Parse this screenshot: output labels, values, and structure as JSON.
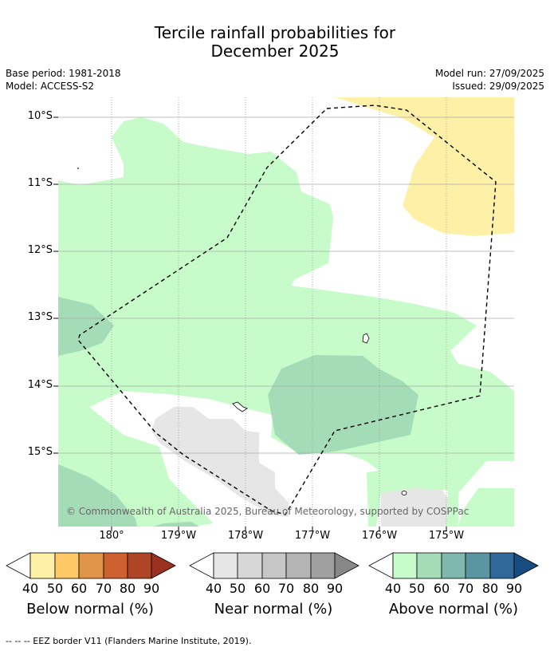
{
  "title_line1": "Tercile rainfall probabilities for",
  "title_line2": "December 2025",
  "base_period": "Base period: 1981-2018",
  "model": "Model: ACCESS-S2",
  "model_run": "Model run: 27/09/2025",
  "issued": "Issued: 29/09/2025",
  "lat_labels": [
    "10°S",
    "11°S",
    "12°S",
    "13°S",
    "14°S",
    "15°S"
  ],
  "lon_labels": [
    "180°",
    "179°W",
    "178°W",
    "177°W",
    "176°W",
    "175°W"
  ],
  "copyright": "© Commonwealth of Australia 2025, Bureau of Meteorology, supported by COSPPac",
  "colorbars": [
    {
      "label": "Below normal (%)",
      "ticks": [
        "40",
        "50",
        "60",
        "70",
        "80",
        "90"
      ],
      "colors": [
        "#fff0a8",
        "#fec966",
        "#e09448",
        "#cf6130",
        "#ae4526",
        "#9a3020"
      ]
    },
    {
      "label": "Near normal (%)",
      "ticks": [
        "40",
        "50",
        "60",
        "70",
        "80",
        "90"
      ],
      "colors": [
        "#e6e6e6",
        "#d7d7d7",
        "#c6c6c6",
        "#b4b4b4",
        "#a0a0a0",
        "#888888"
      ]
    },
    {
      "label": "Above normal (%)",
      "ticks": [
        "40",
        "50",
        "60",
        "70",
        "80",
        "90"
      ],
      "colors": [
        "#c7fcca",
        "#a5dcb8",
        "#80b8ae",
        "#5a96a1",
        "#31689a",
        "#164c7e"
      ]
    }
  ],
  "footer": "--  --  -- EEZ border V11 (Flanders Marine Institute, 2019)."
}
